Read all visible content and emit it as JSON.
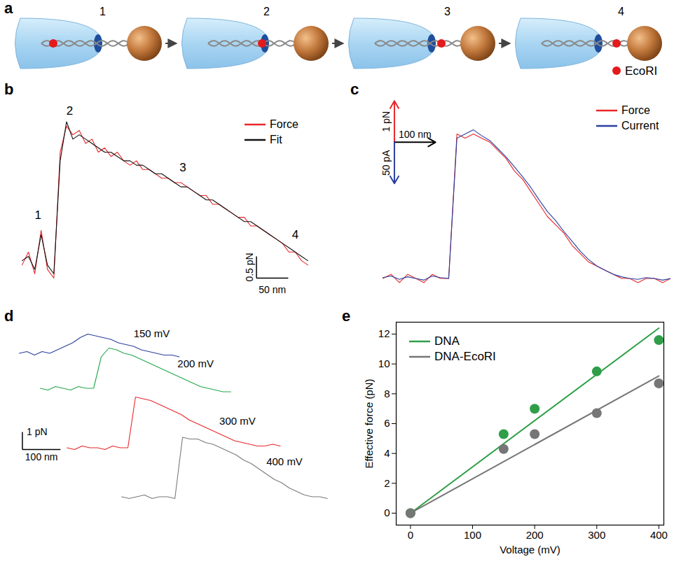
{
  "schematic": {
    "panel": "a",
    "stages": [
      "1",
      "2",
      "3",
      "4"
    ],
    "legend": "EcoRI"
  },
  "chart_data": [
    {
      "panel": "b",
      "type": "line",
      "tick_labels": false,
      "legend": "top-right",
      "x": [
        0,
        10,
        20,
        30,
        40,
        50,
        60,
        70,
        80,
        90,
        100,
        110,
        120,
        130,
        140,
        150,
        160,
        170,
        180,
        190,
        200,
        210,
        220,
        230,
        240,
        250,
        260,
        270,
        280,
        290,
        300,
        310,
        320,
        330,
        340,
        350,
        360,
        370,
        380,
        390,
        400,
        410,
        420,
        430,
        440,
        450
      ],
      "series": [
        {
          "name": "Force",
          "color": "#e8262a",
          "values": [
            0.6,
            0.9,
            0.4,
            1.4,
            0.5,
            0.3,
            3.2,
            3.8,
            3.6,
            3.7,
            3.4,
            3.5,
            3.2,
            3.3,
            3.1,
            3.2,
            3.0,
            2.9,
            3.0,
            2.8,
            2.8,
            2.7,
            2.6,
            2.6,
            2.5,
            2.5,
            2.4,
            2.3,
            2.2,
            2.2,
            2.0,
            2.0,
            1.9,
            1.8,
            1.7,
            1.7,
            1.5,
            1.5,
            1.4,
            1.3,
            1.2,
            1.1,
            0.9,
            0.9,
            0.7,
            0.6
          ]
        },
        {
          "name": "Fit",
          "color": "#111111",
          "values": [
            0.7,
            0.8,
            0.5,
            1.3,
            0.6,
            0.4,
            3.0,
            3.9,
            3.5,
            3.6,
            3.5,
            3.4,
            3.3,
            3.2,
            3.2,
            3.1,
            3.0,
            3.0,
            2.9,
            2.9,
            2.8,
            2.7,
            2.7,
            2.6,
            2.5,
            2.4,
            2.4,
            2.3,
            2.2,
            2.1,
            2.1,
            2.0,
            1.9,
            1.8,
            1.7,
            1.6,
            1.6,
            1.5,
            1.4,
            1.3,
            1.2,
            1.1,
            1.0,
            0.9,
            0.8,
            0.7
          ]
        }
      ],
      "annotations": [
        {
          "text": "1",
          "x": 25,
          "y": 1.75
        },
        {
          "text": "2",
          "x": 75,
          "y": 4.15
        },
        {
          "text": "3",
          "x": 253,
          "y": 2.85
        },
        {
          "text": "4",
          "x": 430,
          "y": 1.3
        }
      ],
      "scale_bar": {
        "x": 50,
        "x_label": "50 nm",
        "y": 0.5,
        "y_label": "0.5 pN"
      }
    },
    {
      "panel": "c",
      "type": "line",
      "tick_labels": false,
      "legend": "top-right",
      "x": [
        0,
        20,
        40,
        60,
        80,
        100,
        120,
        140,
        160,
        180,
        200,
        220,
        240,
        260,
        280,
        300,
        320,
        340,
        360,
        380,
        400,
        420,
        440,
        460,
        480,
        500,
        520,
        540,
        560,
        580,
        600,
        620,
        640,
        660,
        680,
        700
      ],
      "ylim": [
        0,
        5
      ],
      "y2lim": [
        0,
        250
      ],
      "series": [
        {
          "name": "Force",
          "color": "#e8262a",
          "values": [
            0.5,
            0.6,
            0.4,
            0.6,
            0.5,
            0.4,
            0.6,
            0.5,
            0.5,
            4.0,
            3.9,
            4.0,
            3.9,
            3.8,
            3.6,
            3.4,
            3.1,
            2.9,
            2.6,
            2.3,
            2.0,
            1.8,
            1.6,
            1.3,
            1.1,
            0.9,
            0.8,
            0.7,
            0.6,
            0.5,
            0.5,
            0.4,
            0.5,
            0.5,
            0.4,
            0.5
          ]
        },
        {
          "name": "Current",
          "color": "#2b3f9e",
          "axis": "y2",
          "values": [
            26,
            28,
            24,
            27,
            25,
            23,
            28,
            26,
            25,
            195,
            200,
            205,
            198,
            192,
            182,
            172,
            160,
            148,
            135,
            120,
            106,
            95,
            82,
            70,
            58,
            48,
            40,
            35,
            30,
            27,
            25,
            24,
            26,
            25,
            23,
            25
          ]
        }
      ],
      "scale_bar": {
        "x": 100,
        "x_label": "100 nm",
        "y": 1,
        "y_label": "1 pN",
        "y2": 50,
        "y2_label": "50 pA"
      }
    },
    {
      "panel": "d",
      "type": "line",
      "tick_labels": false,
      "xlim": [
        0,
        820
      ],
      "ylim": [
        0,
        4
      ],
      "series": [
        {
          "name": "150 mV",
          "color": "#2b3f9e",
          "x": [
            0,
            20,
            40,
            60,
            80,
            100,
            120,
            140,
            160,
            180,
            200,
            220,
            240,
            260,
            280,
            300,
            320,
            340,
            360,
            380,
            400,
            420
          ],
          "values": [
            0.3,
            0.4,
            0.2,
            0.4,
            0.3,
            0.5,
            0.7,
            0.9,
            1.2,
            1.4,
            1.3,
            1.2,
            1.1,
            0.9,
            0.8,
            0.7,
            0.5,
            0.4,
            0.3,
            0.2,
            0.2,
            0.1
          ]
        },
        {
          "name": "200 mV",
          "color": "#22a84a",
          "x": [
            0,
            20,
            40,
            60,
            80,
            100,
            120,
            140,
            160,
            180,
            200,
            220,
            240,
            260,
            280,
            300,
            320,
            340,
            360,
            380,
            400,
            420,
            440,
            460,
            480,
            500
          ],
          "values": [
            0.3,
            0.2,
            0.4,
            0.3,
            0.2,
            0.4,
            0.3,
            0.3,
            2.1,
            2.6,
            2.5,
            2.3,
            2.2,
            2.0,
            1.8,
            1.6,
            1.4,
            1.2,
            1.0,
            0.8,
            0.6,
            0.4,
            0.3,
            0.2,
            0.1,
            0.1
          ]
        },
        {
          "name": "300 mV",
          "color": "#e8262a",
          "x": [
            0,
            20,
            40,
            60,
            80,
            100,
            120,
            140,
            160,
            180,
            200,
            220,
            240,
            260,
            280,
            300,
            320,
            340,
            360,
            380,
            400,
            420,
            440,
            460,
            480,
            500,
            520,
            540,
            560
          ],
          "values": [
            0.3,
            0.2,
            0.4,
            0.3,
            0.3,
            0.2,
            0.4,
            0.3,
            0.3,
            3.2,
            3.1,
            3.0,
            2.8,
            2.6,
            2.4,
            2.2,
            1.9,
            1.7,
            1.5,
            1.3,
            1.1,
            0.9,
            0.7,
            0.6,
            0.5,
            0.4,
            0.4,
            0.5,
            0.4
          ]
        },
        {
          "name": "400 mV",
          "color": "#7a7a7a",
          "x": [
            0,
            20,
            40,
            60,
            80,
            100,
            120,
            140,
            160,
            180,
            200,
            220,
            240,
            260,
            280,
            300,
            320,
            340,
            360,
            380,
            400,
            420,
            440,
            460,
            480,
            500,
            520,
            540
          ],
          "values": [
            0.3,
            0.2,
            0.3,
            0.4,
            0.2,
            0.3,
            0.3,
            0.2,
            3.7,
            3.6,
            3.6,
            3.4,
            3.3,
            3.1,
            2.9,
            2.7,
            2.4,
            2.2,
            1.9,
            1.6,
            1.3,
            1.1,
            0.8,
            0.6,
            0.4,
            0.3,
            0.3,
            0.2
          ]
        }
      ],
      "scale_bar": {
        "x": 100,
        "x_label": "100 nm",
        "y": 1,
        "y_label": "1 pN"
      }
    },
    {
      "panel": "e",
      "type": "scatter",
      "legend": "top-left",
      "marker": "circle",
      "x_label": "Voltage (mV)",
      "y_label": "Effective force (pN)",
      "x": [
        0,
        150,
        200,
        300,
        400
      ],
      "fit_x": [
        0,
        400
      ],
      "xlim": [
        -23,
        408
      ],
      "ylim": [
        -0.8,
        12.8
      ],
      "xticks": [
        0,
        100,
        200,
        300,
        400
      ],
      "yticks": [
        0,
        2,
        4,
        6,
        8,
        10,
        12
      ],
      "series": [
        {
          "name": "DNA",
          "color": "#2f9e48",
          "values": [
            0,
            5.3,
            7.0,
            9.5,
            11.6
          ],
          "fit": [
            0,
            12.4
          ]
        },
        {
          "name": "DNA-EcoRI",
          "color": "#767676",
          "values": [
            0,
            4.3,
            5.3,
            6.7,
            8.7
          ],
          "fit": [
            0,
            9.2
          ]
        }
      ]
    }
  ]
}
